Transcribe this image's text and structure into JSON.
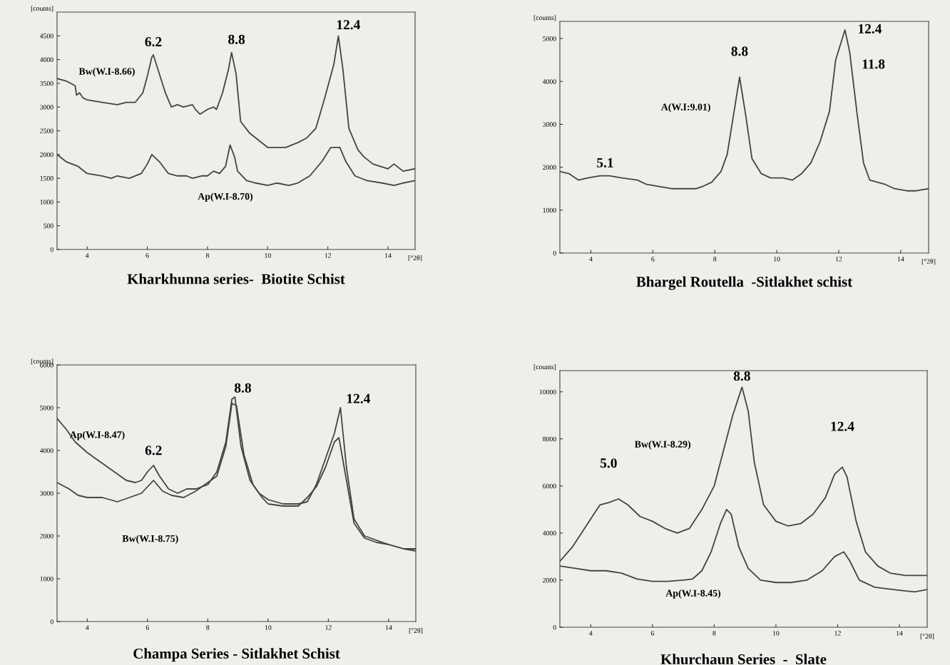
{
  "chart_data": [
    {
      "type": "line",
      "title": "Kharkhunna series-  Biotite Schist",
      "ylabel": "[counts]",
      "xlabel": "[°2θ]",
      "xlim": [
        3,
        14.9
      ],
      "xticks": [
        4,
        6,
        8,
        10,
        12,
        14
      ],
      "ylim": [
        0,
        5000
      ],
      "yticks": [
        0,
        500,
        1000,
        1500,
        2000,
        2500,
        3000,
        3500,
        4000,
        4500
      ],
      "grid": false,
      "legend": false,
      "series": [
        {
          "color": "#444444",
          "x": [
            3.0,
            3.3,
            3.6,
            3.65,
            3.75,
            3.85,
            4.0,
            4.5,
            5.0,
            5.3,
            5.6,
            5.85,
            6.0,
            6.15,
            6.2,
            6.35,
            6.6,
            6.8,
            7.0,
            7.2,
            7.5,
            7.6,
            7.75,
            8.0,
            8.2,
            8.3,
            8.5,
            8.7,
            8.8,
            8.95,
            9.1,
            9.4,
            9.7,
            10.0,
            10.3,
            10.6,
            11.0,
            11.3,
            11.6,
            11.9,
            12.2,
            12.35,
            12.5,
            12.7,
            13.0,
            13.2,
            13.5,
            14.0,
            14.2,
            14.5,
            14.9
          ],
          "values": [
            3600,
            3550,
            3450,
            3250,
            3300,
            3200,
            3150,
            3100,
            3050,
            3100,
            3100,
            3300,
            3650,
            4050,
            4100,
            3800,
            3300,
            3000,
            3050,
            3000,
            3050,
            2950,
            2850,
            2950,
            3000,
            2950,
            3300,
            3800,
            4150,
            3700,
            2700,
            2450,
            2300,
            2150,
            2150,
            2150,
            2250,
            2350,
            2550,
            3200,
            3900,
            4500,
            3800,
            2550,
            2100,
            1950,
            1800,
            1700,
            1800,
            1650,
            1700
          ]
        },
        {
          "color": "#444444",
          "x": [
            3.0,
            3.3,
            3.7,
            4.0,
            4.5,
            4.8,
            5.0,
            5.4,
            5.8,
            6.0,
            6.15,
            6.4,
            6.7,
            7.0,
            7.3,
            7.5,
            7.8,
            8.0,
            8.2,
            8.4,
            8.6,
            8.75,
            8.9,
            9.0,
            9.3,
            9.6,
            10.0,
            10.3,
            10.7,
            11.0,
            11.4,
            11.8,
            12.1,
            12.4,
            12.6,
            12.9,
            13.3,
            13.8,
            14.2,
            14.5,
            14.9
          ],
          "values": [
            2000,
            1850,
            1750,
            1600,
            1550,
            1500,
            1550,
            1500,
            1600,
            1800,
            2000,
            1850,
            1600,
            1550,
            1550,
            1500,
            1550,
            1550,
            1650,
            1600,
            1750,
            2200,
            1950,
            1650,
            1450,
            1400,
            1350,
            1400,
            1350,
            1400,
            1550,
            1850,
            2150,
            2150,
            1850,
            1550,
            1450,
            1400,
            1350,
            1400,
            1450
          ]
        }
      ],
      "annotations": [
        {
          "text": "6.2",
          "x": 6.2,
          "y": 4100
        },
        {
          "text": "8.8",
          "x": 8.8,
          "y": 4150
        },
        {
          "text": "12.4",
          "x": 12.35,
          "y": 4500
        },
        {
          "text": "Bw(W.I-8.66)",
          "x": 4.0,
          "y": 3150
        },
        "Ap(W.I-8.70)"
      ]
    },
    {
      "type": "line",
      "title": "Bhargel Routella  -Sitlakhet schist",
      "ylabel": "[counts]",
      "xlabel": "[°2θ]",
      "xlim": [
        3,
        14.9
      ],
      "xticks": [
        4,
        6,
        8,
        10,
        12,
        14
      ],
      "ylim": [
        0,
        5400
      ],
      "yticks": [
        0,
        1000,
        2000,
        3000,
        4000,
        5000
      ],
      "grid": false,
      "legend": false,
      "series": [
        {
          "color": "#444444",
          "x": [
            3.0,
            3.3,
            3.6,
            3.9,
            4.3,
            4.6,
            5.0,
            5.5,
            5.8,
            6.2,
            6.6,
            7.0,
            7.4,
            7.6,
            7.9,
            8.2,
            8.4,
            8.6,
            8.8,
            9.0,
            9.2,
            9.5,
            9.8,
            10.2,
            10.5,
            10.8,
            11.1,
            11.4,
            11.7,
            11.9,
            12.2,
            12.35,
            12.6,
            12.8,
            13.0,
            13.5,
            13.8,
            14.2,
            14.5,
            14.9
          ],
          "values": [
            1900,
            1850,
            1700,
            1750,
            1800,
            1800,
            1750,
            1700,
            1600,
            1550,
            1500,
            1500,
            1500,
            1550,
            1650,
            1900,
            2300,
            3200,
            4100,
            3200,
            2200,
            1850,
            1750,
            1750,
            1700,
            1850,
            2100,
            2600,
            3300,
            4500,
            5200,
            4700,
            3200,
            2100,
            1700,
            1600,
            1500,
            1450,
            1450,
            1500
          ]
        }
      ],
      "annotations": [
        {
          "text": "8.8",
          "x": 8.8,
          "y": 4100
        },
        {
          "text": "12.4",
          "x": 12.2,
          "y": 5200
        },
        {
          "text": "11.8",
          "x": 12.35,
          "y": 4700
        },
        {
          "text": "A(W.I:9.01)",
          "x": 8.6,
          "y": 3200
        },
        {
          "text": "5.1",
          "x": 4.3,
          "y": 1800
        }
      ]
    },
    {
      "type": "line",
      "title": "Champa Series - Sitlakhet Schist",
      "ylabel": "[counts]",
      "xlabel": "[°2θ]",
      "xlim": [
        3,
        14.9
      ],
      "xticks": [
        4,
        6,
        8,
        10,
        12,
        14
      ],
      "ylim": [
        0,
        6000
      ],
      "yticks": [
        0,
        1000,
        2000,
        3000,
        4000,
        5000,
        6000
      ],
      "grid": false,
      "legend": false,
      "series": [
        {
          "color": "#444444",
          "x": [
            3.0,
            3.3,
            3.6,
            4.0,
            4.5,
            5.0,
            5.3,
            5.6,
            5.8,
            6.0,
            6.2,
            6.4,
            6.7,
            7.0,
            7.3,
            7.6,
            8.0,
            8.3,
            8.6,
            8.8,
            8.9,
            9.1,
            9.4,
            9.7,
            10.0,
            10.5,
            11.0,
            11.3,
            11.6,
            11.9,
            12.2,
            12.4,
            12.6,
            12.85,
            13.2,
            13.6,
            14.0,
            14.5,
            14.9
          ],
          "values": [
            4750,
            4500,
            4200,
            3950,
            3700,
            3450,
            3300,
            3250,
            3300,
            3500,
            3650,
            3400,
            3100,
            3000,
            3100,
            3100,
            3200,
            3500,
            4200,
            5200,
            5250,
            4100,
            3300,
            3000,
            2850,
            2750,
            2750,
            2800,
            3200,
            3800,
            4400,
            5000,
            3600,
            2400,
            2000,
            1900,
            1800,
            1700,
            1650
          ]
        },
        {
          "color": "#444444",
          "x": [
            3.0,
            3.4,
            3.7,
            4.0,
            4.5,
            5.0,
            5.4,
            5.8,
            6.0,
            6.2,
            6.5,
            6.8,
            7.2,
            7.6,
            8.0,
            8.3,
            8.6,
            8.8,
            8.95,
            9.2,
            9.5,
            9.8,
            10.0,
            10.5,
            11.0,
            11.3,
            11.6,
            11.9,
            12.2,
            12.35,
            12.6,
            12.85,
            13.2,
            13.6,
            14.0,
            14.5,
            14.9
          ],
          "values": [
            3250,
            3100,
            2950,
            2900,
            2900,
            2800,
            2900,
            3000,
            3150,
            3300,
            3050,
            2950,
            2900,
            3050,
            3250,
            3400,
            4100,
            5100,
            5050,
            3900,
            3200,
            2900,
            2750,
            2700,
            2700,
            2900,
            3150,
            3600,
            4200,
            4300,
            3300,
            2300,
            1950,
            1850,
            1800,
            1700,
            1700
          ]
        }
      ],
      "annotations": [
        {
          "text": "8.8",
          "x": 8.9,
          "y": 5250
        },
        {
          "text": "12.4",
          "x": 12.4,
          "y": 5000
        },
        {
          "text": "6.2",
          "x": 6.2,
          "y": 3650
        },
        {
          "text": "Ap(W.I-8.47)",
          "x": 4.5,
          "y": 3700
        },
        "Bw(W.I-8.75)"
      ]
    },
    {
      "type": "line",
      "title": "Khurchaun Series  -  Slate",
      "ylabel": "[counts]",
      "xlabel": "[°2θ]",
      "xlim": [
        3,
        14.9
      ],
      "xticks": [
        4,
        6,
        8,
        10,
        12,
        14
      ],
      "ylim": [
        0,
        10900
      ],
      "yticks": [
        0,
        2000,
        4000,
        6000,
        8000,
        10000
      ],
      "grid": false,
      "legend": false,
      "series": [
        {
          "color": "#444444",
          "x": [
            3.0,
            3.4,
            3.7,
            4.0,
            4.3,
            4.6,
            4.9,
            5.2,
            5.6,
            6.0,
            6.4,
            6.8,
            7.2,
            7.6,
            8.0,
            8.3,
            8.6,
            8.9,
            9.1,
            9.3,
            9.6,
            10.0,
            10.4,
            10.8,
            11.2,
            11.6,
            11.9,
            12.15,
            12.3,
            12.6,
            12.9,
            13.3,
            13.7,
            14.2,
            14.9
          ],
          "values": [
            2800,
            3400,
            4000,
            4600,
            5200,
            5300,
            5450,
            5200,
            4700,
            4500,
            4200,
            4000,
            4200,
            5000,
            6000,
            7500,
            9000,
            10200,
            9200,
            7000,
            5200,
            4500,
            4300,
            4400,
            4800,
            5500,
            6500,
            6800,
            6400,
            4500,
            3200,
            2600,
            2300,
            2200,
            2200
          ]
        },
        {
          "color": "#444444",
          "x": [
            3.0,
            3.5,
            4.0,
            4.5,
            5.0,
            5.5,
            6.0,
            6.5,
            7.0,
            7.3,
            7.6,
            7.9,
            8.2,
            8.4,
            8.55,
            8.8,
            9.1,
            9.5,
            10.0,
            10.5,
            11.0,
            11.5,
            11.9,
            12.2,
            12.4,
            12.7,
            13.2,
            13.8,
            14.5,
            14.9
          ],
          "values": [
            2600,
            2500,
            2400,
            2400,
            2300,
            2050,
            1950,
            1950,
            2000,
            2050,
            2400,
            3200,
            4400,
            5000,
            4800,
            3400,
            2500,
            2000,
            1900,
            1900,
            2000,
            2400,
            3000,
            3200,
            2800,
            2000,
            1700,
            1600,
            1500,
            1600
          ]
        }
      ],
      "annotations": [
        {
          "text": "8.8",
          "x": 8.9,
          "y": 10200
        },
        {
          "text": "12.4",
          "x": 12.15,
          "y": 6800
        },
        {
          "text": "5.0",
          "x": 4.9,
          "y": 5450
        },
        "Bw(W.I-8.29)",
        {
          "text": "Ap(W.I-8.45)",
          "x": 7.0,
          "y": 2000
        }
      ]
    }
  ]
}
